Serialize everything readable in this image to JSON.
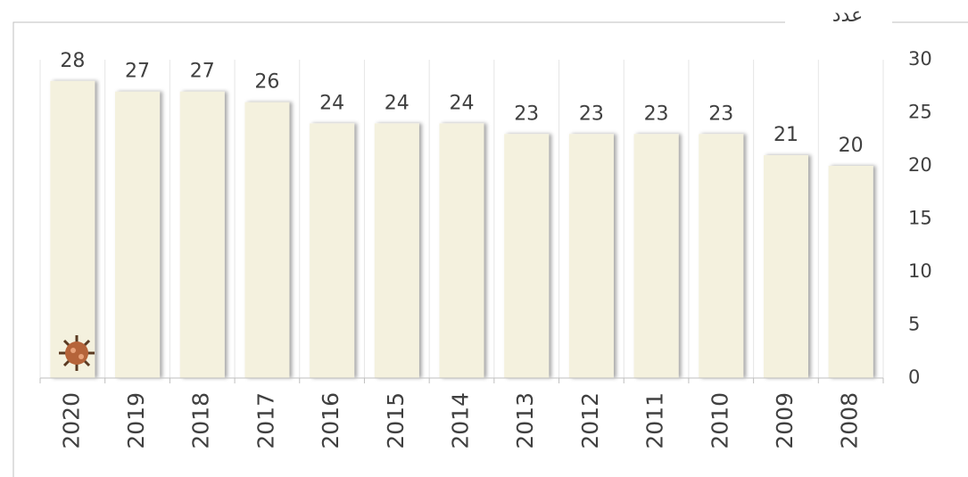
{
  "chart_data": {
    "type": "bar",
    "y_axis_label": "عدد",
    "categories": [
      "2020",
      "2019",
      "2018",
      "2017",
      "2016",
      "2015",
      "2014",
      "2013",
      "2012",
      "2011",
      "2010",
      "2009",
      "2008"
    ],
    "values": [
      28,
      27,
      27,
      26,
      24,
      24,
      24,
      23,
      23,
      23,
      23,
      21,
      20
    ],
    "color": "#f4f1de",
    "ylim": [
      0,
      30
    ],
    "yticks": [
      0,
      5,
      10,
      15,
      20,
      25,
      30
    ],
    "grid": true
  }
}
